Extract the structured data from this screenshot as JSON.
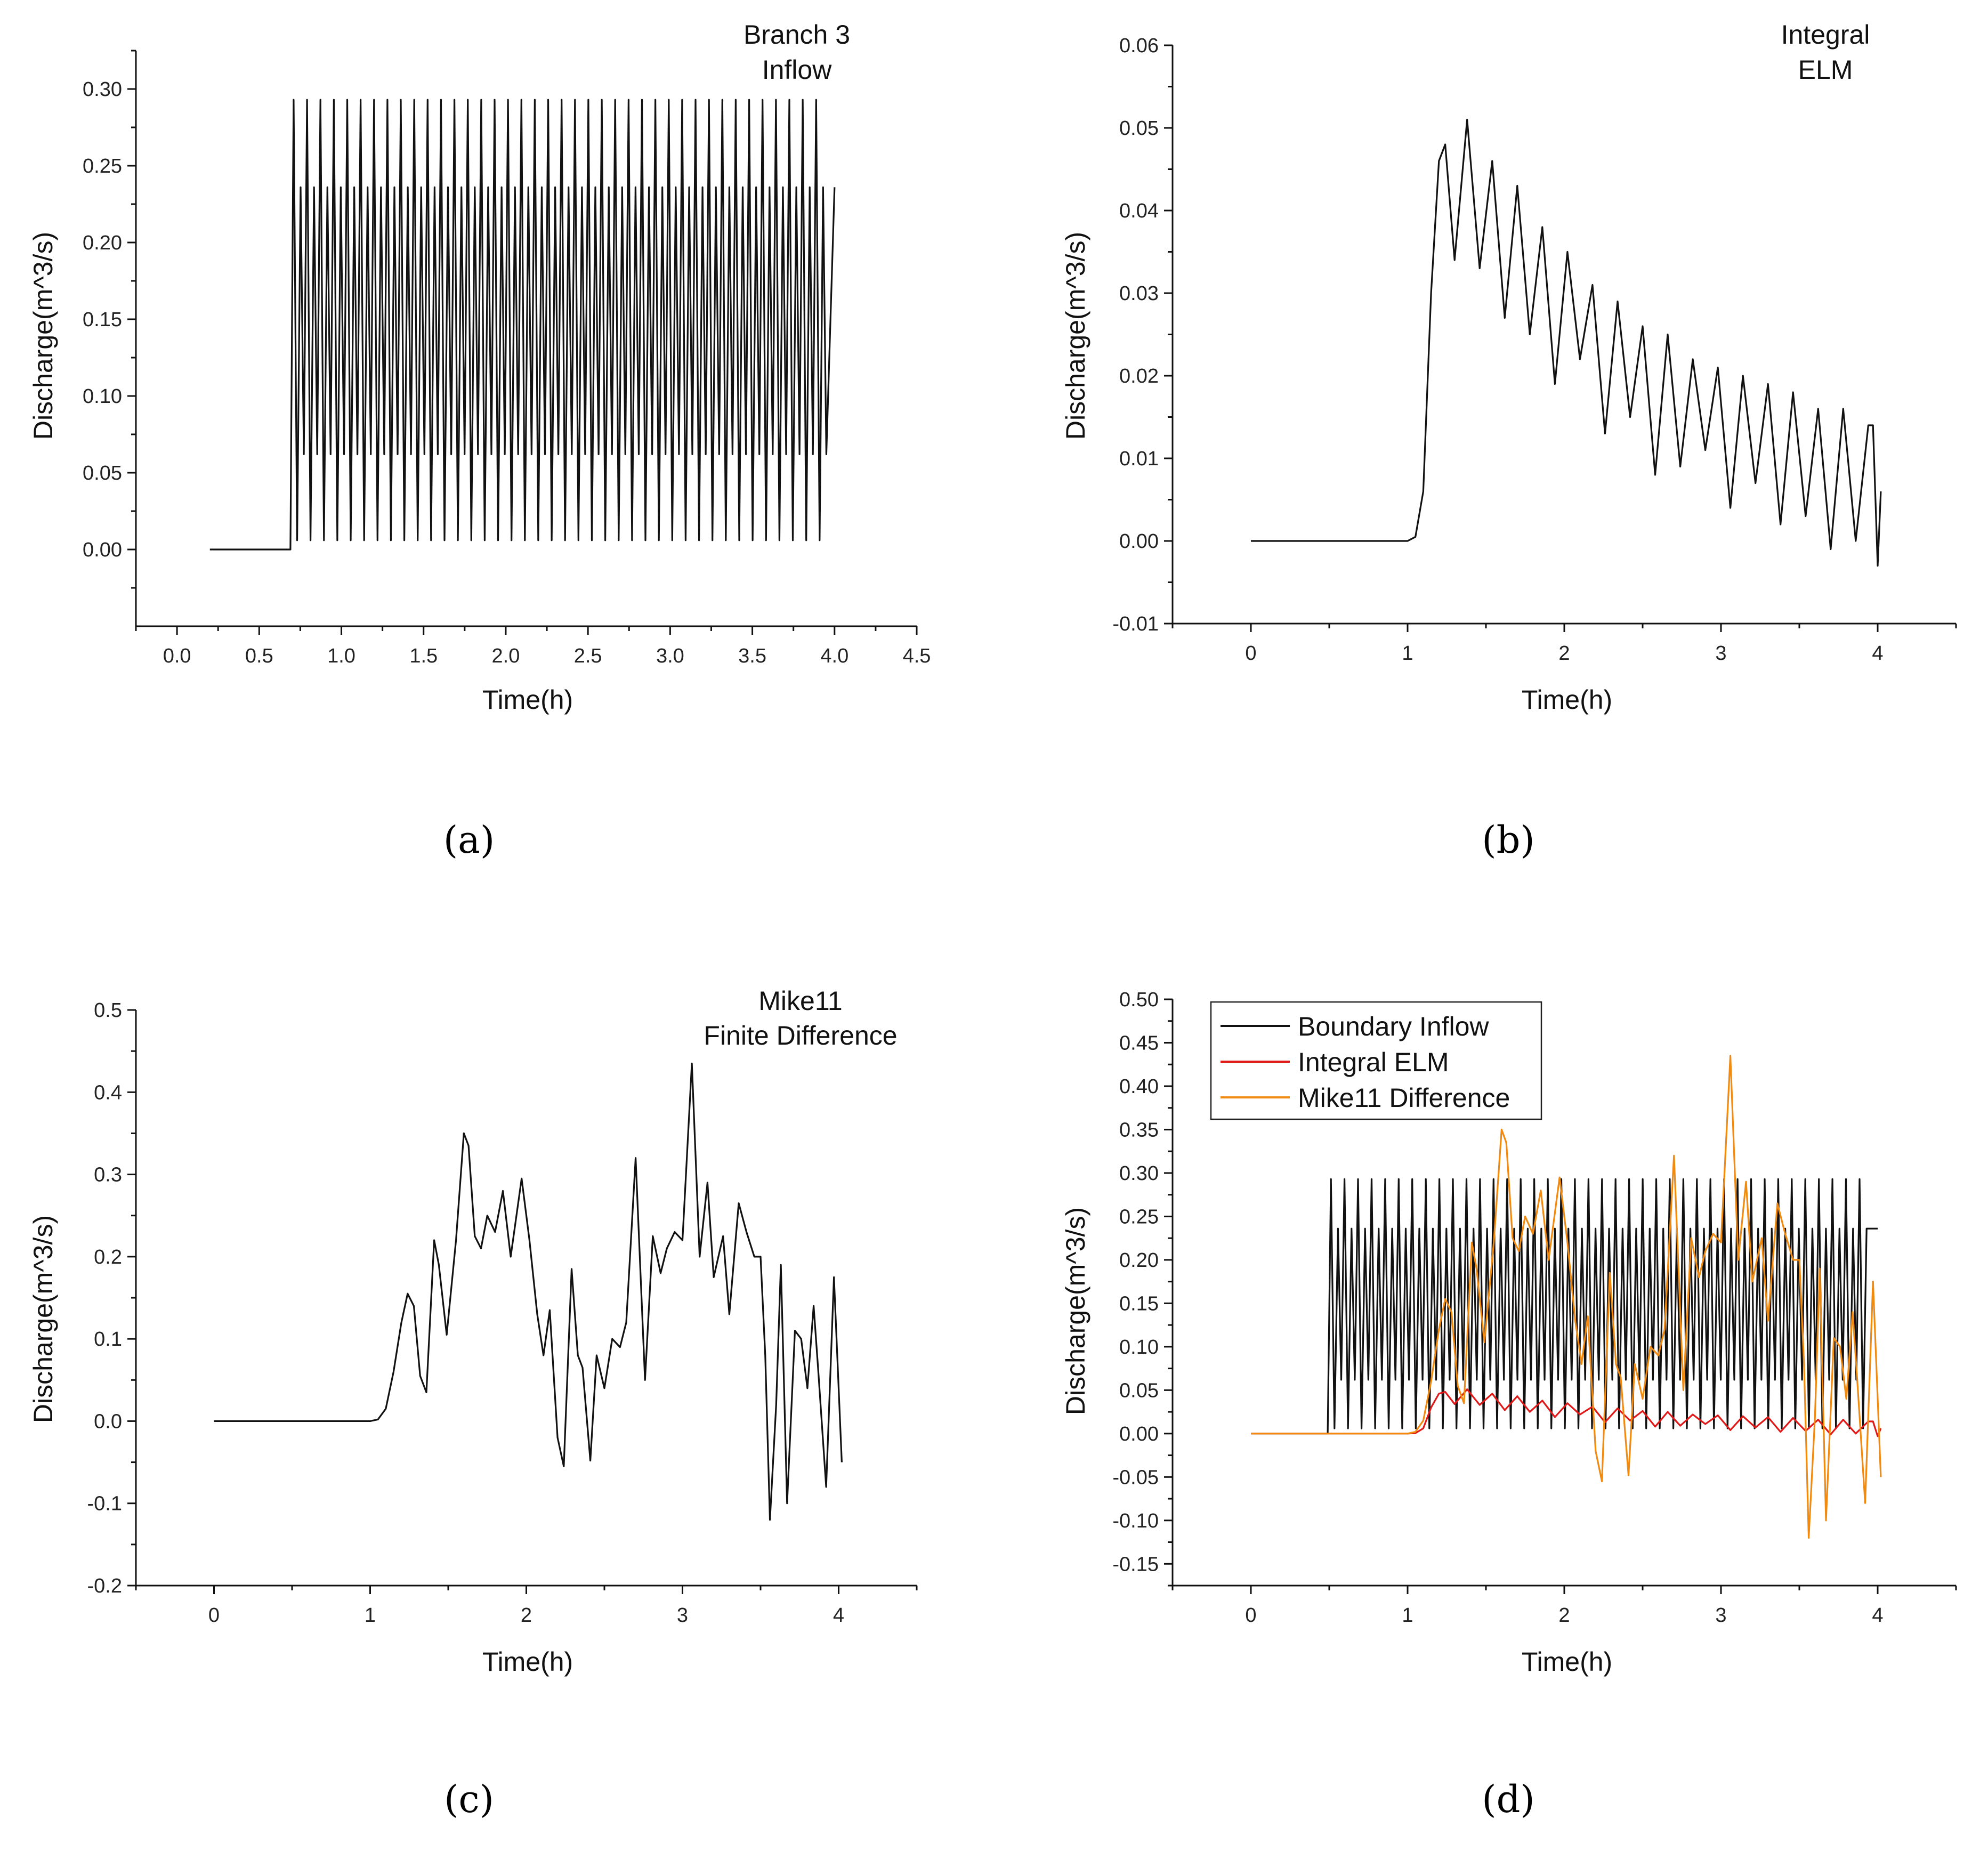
{
  "chart_data": [
    {
      "id": "a",
      "type": "line",
      "panel_label": "(a)",
      "annotation": [
        "Branch 3",
        "Inflow"
      ],
      "xlabel": "Time(h)",
      "ylabel": "Discharge(m^3/s)",
      "xlim": [
        -0.25,
        4.5
      ],
      "ylim": [
        -0.05,
        0.325
      ],
      "xticks": [
        0.0,
        0.5,
        1.0,
        1.5,
        2.0,
        2.5,
        3.0,
        3.5,
        4.0,
        4.5
      ],
      "xtick_labels": [
        "0.0",
        "0.5",
        "1.0",
        "1.5",
        "2.0",
        "2.5",
        "3.0",
        "3.5",
        "4.0",
        "4.5"
      ],
      "yticks": [
        0.0,
        0.05,
        0.1,
        0.15,
        0.2,
        0.25,
        0.3
      ],
      "ytick_labels": [
        "0.00",
        "0.05",
        "0.10",
        "0.15",
        "0.20",
        "0.25",
        "0.30"
      ],
      "legend": "none",
      "series": [
        {
          "name": "Branch 3 Inflow",
          "color": "#111111",
          "generator": {
            "kind": "pulse_train",
            "x0": 0.2,
            "start": 0.69,
            "end": 3.95,
            "x_end": 4.0,
            "period": 0.163,
            "hi": 0.293,
            "lo": 0.006,
            "mid_hi": 0.236,
            "mid_lo": 0.062,
            "base": 0.0
          }
        }
      ]
    },
    {
      "id": "b",
      "type": "line",
      "panel_label": "(b)",
      "annotation": [
        "Integral",
        "ELM"
      ],
      "xlabel": "Time(h)",
      "ylabel": "Discharge(m^3/s)",
      "xlim": [
        -0.5,
        4.5
      ],
      "ylim": [
        -0.01,
        0.06
      ],
      "xticks": [
        0,
        1,
        2,
        3,
        4
      ],
      "xtick_labels": [
        "0",
        "1",
        "2",
        "3",
        "4"
      ],
      "yticks": [
        -0.01,
        0.0,
        0.01,
        0.02,
        0.03,
        0.04,
        0.05,
        0.06
      ],
      "ytick_labels": [
        "-0.01",
        "0.00",
        "0.01",
        "0.02",
        "0.03",
        "0.04",
        "0.05",
        "0.06"
      ],
      "legend": "none",
      "series": [
        {
          "name": "Integral ELM",
          "color": "#111111",
          "points": [
            [
              0,
              0
            ],
            [
              1.0,
              0
            ],
            [
              1.05,
              0.0005
            ],
            [
              1.1,
              0.006
            ],
            [
              1.15,
              0.03
            ],
            [
              1.2,
              0.046
            ],
            [
              1.24,
              0.048
            ],
            [
              1.3,
              0.034
            ],
            [
              1.38,
              0.051
            ],
            [
              1.46,
              0.033
            ],
            [
              1.54,
              0.046
            ],
            [
              1.62,
              0.027
            ],
            [
              1.7,
              0.043
            ],
            [
              1.78,
              0.025
            ],
            [
              1.86,
              0.038
            ],
            [
              1.94,
              0.019
            ],
            [
              2.02,
              0.035
            ],
            [
              2.1,
              0.022
            ],
            [
              2.18,
              0.031
            ],
            [
              2.26,
              0.013
            ],
            [
              2.34,
              0.029
            ],
            [
              2.42,
              0.015
            ],
            [
              2.5,
              0.026
            ],
            [
              2.58,
              0.008
            ],
            [
              2.66,
              0.025
            ],
            [
              2.74,
              0.009
            ],
            [
              2.82,
              0.022
            ],
            [
              2.9,
              0.011
            ],
            [
              2.98,
              0.021
            ],
            [
              3.06,
              0.004
            ],
            [
              3.14,
              0.02
            ],
            [
              3.22,
              0.007
            ],
            [
              3.3,
              0.019
            ],
            [
              3.38,
              0.002
            ],
            [
              3.46,
              0.018
            ],
            [
              3.54,
              0.003
            ],
            [
              3.62,
              0.016
            ],
            [
              3.7,
              -0.001
            ],
            [
              3.78,
              0.016
            ],
            [
              3.86,
              0.0
            ],
            [
              3.94,
              0.014
            ],
            [
              3.97,
              0.014
            ],
            [
              4.0,
              -0.003
            ],
            [
              4.02,
              0.006
            ]
          ]
        }
      ]
    },
    {
      "id": "c",
      "type": "line",
      "panel_label": "(c)",
      "annotation": [
        "Mike11",
        "Finite Difference"
      ],
      "xlabel": "Time(h)",
      "ylabel": "Discharge(m^3/s)",
      "xlim": [
        -0.5,
        4.5
      ],
      "ylim": [
        -0.2,
        0.5
      ],
      "xticks": [
        0,
        1,
        2,
        3,
        4
      ],
      "xtick_labels": [
        "0",
        "1",
        "2",
        "3",
        "4"
      ],
      "yticks": [
        -0.2,
        -0.1,
        0.0,
        0.1,
        0.2,
        0.3,
        0.4,
        0.5
      ],
      "ytick_labels": [
        "-0.2",
        "-0.1",
        "0.0",
        "0.1",
        "0.2",
        "0.3",
        "0.4",
        "0.5"
      ],
      "legend": "none",
      "series": [
        {
          "name": "Mike11 Finite Difference",
          "color": "#111111",
          "points": [
            [
              0,
              0
            ],
            [
              1.0,
              0
            ],
            [
              1.05,
              0.002
            ],
            [
              1.1,
              0.015
            ],
            [
              1.15,
              0.06
            ],
            [
              1.2,
              0.12
            ],
            [
              1.24,
              0.155
            ],
            [
              1.28,
              0.14
            ],
            [
              1.32,
              0.055
            ],
            [
              1.36,
              0.035
            ],
            [
              1.41,
              0.22
            ],
            [
              1.44,
              0.19
            ],
            [
              1.49,
              0.105
            ],
            [
              1.55,
              0.22
            ],
            [
              1.6,
              0.35
            ],
            [
              1.63,
              0.335
            ],
            [
              1.67,
              0.225
            ],
            [
              1.71,
              0.21
            ],
            [
              1.75,
              0.25
            ],
            [
              1.8,
              0.23
            ],
            [
              1.85,
              0.28
            ],
            [
              1.9,
              0.2
            ],
            [
              1.97,
              0.295
            ],
            [
              2.02,
              0.22
            ],
            [
              2.07,
              0.13
            ],
            [
              2.11,
              0.08
            ],
            [
              2.15,
              0.135
            ],
            [
              2.2,
              -0.02
            ],
            [
              2.24,
              -0.055
            ],
            [
              2.29,
              0.185
            ],
            [
              2.33,
              0.08
            ],
            [
              2.36,
              0.065
            ],
            [
              2.41,
              -0.048
            ],
            [
              2.45,
              0.08
            ],
            [
              2.5,
              0.04
            ],
            [
              2.55,
              0.1
            ],
            [
              2.6,
              0.09
            ],
            [
              2.64,
              0.12
            ],
            [
              2.7,
              0.32
            ],
            [
              2.76,
              0.05
            ],
            [
              2.81,
              0.225
            ],
            [
              2.86,
              0.18
            ],
            [
              2.9,
              0.21
            ],
            [
              2.95,
              0.23
            ],
            [
              3.0,
              0.22
            ],
            [
              3.06,
              0.435
            ],
            [
              3.11,
              0.2
            ],
            [
              3.16,
              0.29
            ],
            [
              3.2,
              0.175
            ],
            [
              3.26,
              0.225
            ],
            [
              3.3,
              0.13
            ],
            [
              3.36,
              0.265
            ],
            [
              3.41,
              0.23
            ],
            [
              3.46,
              0.2
            ],
            [
              3.5,
              0.2
            ],
            [
              3.53,
              0.08
            ],
            [
              3.56,
              -0.12
            ],
            [
              3.6,
              0.02
            ],
            [
              3.63,
              0.19
            ],
            [
              3.67,
              -0.1
            ],
            [
              3.72,
              0.11
            ],
            [
              3.76,
              0.1
            ],
            [
              3.8,
              0.04
            ],
            [
              3.84,
              0.14
            ],
            [
              3.87,
              0.06
            ],
            [
              3.92,
              -0.08
            ],
            [
              3.97,
              0.175
            ],
            [
              4.02,
              -0.05
            ]
          ]
        }
      ]
    },
    {
      "id": "d",
      "type": "line",
      "panel_label": "(d)",
      "xlabel": "Time(h)",
      "ylabel": "Discharge(m^3/s)",
      "xlim": [
        -0.5,
        4.5
      ],
      "ylim": [
        -0.175,
        0.5
      ],
      "xticks": [
        0,
        1,
        2,
        3,
        4
      ],
      "xtick_labels": [
        "0",
        "1",
        "2",
        "3",
        "4"
      ],
      "yticks": [
        -0.15,
        -0.1,
        -0.05,
        0.0,
        0.05,
        0.1,
        0.15,
        0.2,
        0.25,
        0.3,
        0.35,
        0.4,
        0.45,
        0.5
      ],
      "ytick_labels": [
        "-0.15",
        "-0.10",
        "-0.05",
        "0.00",
        "0.05",
        "0.10",
        "0.15",
        "0.20",
        "0.25",
        "0.30",
        "0.35",
        "0.40",
        "0.45",
        "0.50"
      ],
      "legend": "top-left",
      "series": [
        {
          "name": "Boundary Inflow",
          "color": "#111111",
          "generator": {
            "kind": "pulse_train",
            "x0": 0.0,
            "start": 0.49,
            "end": 3.95,
            "x_end": 4.0,
            "period": 0.173,
            "hi": 0.293,
            "lo": 0.006,
            "mid_hi": 0.236,
            "mid_lo": 0.062,
            "base": 0.0
          }
        },
        {
          "name": "Integral ELM",
          "color": "#e01818",
          "ref": "b"
        },
        {
          "name": "Mike11 Difference",
          "color": "#f08a10",
          "ref": "c"
        }
      ]
    }
  ]
}
